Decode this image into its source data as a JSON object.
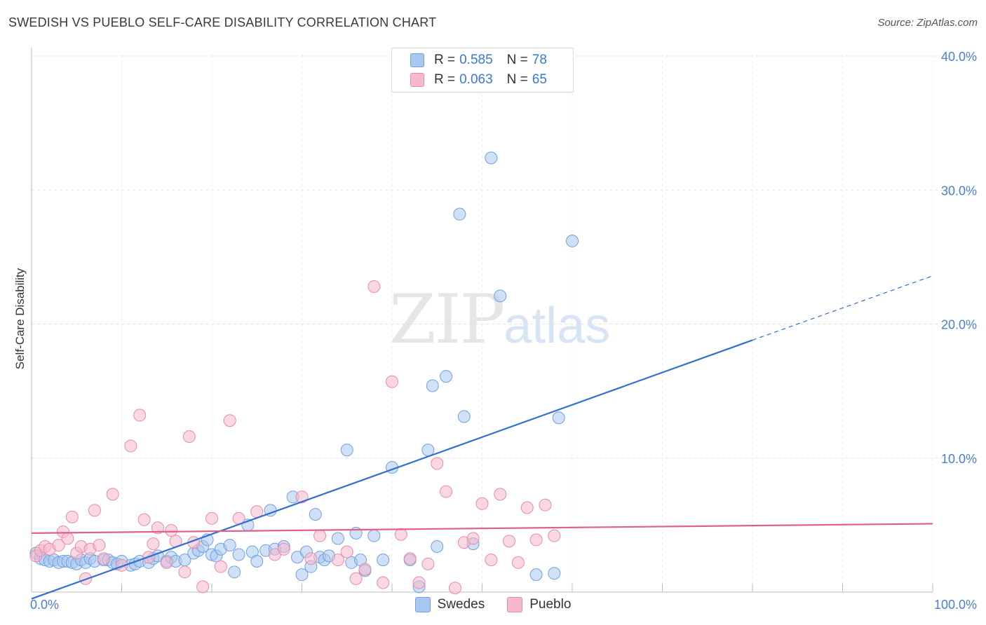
{
  "title": "SWEDISH VS PUEBLO SELF-CARE DISABILITY CORRELATION CHART",
  "source": "Source: ZipAtlas.com",
  "watermark": {
    "zip": "ZIP",
    "atlas": "atlas"
  },
  "legend": {
    "rows": [
      {
        "r_label": "R =",
        "r_value": "0.585",
        "n_label": "N =",
        "n_value": "78",
        "color": "#a9c8f0"
      },
      {
        "r_label": "R =",
        "r_value": "0.063",
        "n_label": "N =",
        "n_value": "65",
        "color": "#f6b8cc"
      }
    ]
  },
  "bottom_legend": [
    {
      "label": "Swedes",
      "color": "#a9c8f0"
    },
    {
      "label": "Pueblo",
      "color": "#f6b8cc"
    }
  ],
  "chart_data": {
    "type": "scatter",
    "title": "SWEDISH VS PUEBLO SELF-CARE DISABILITY CORRELATION CHART",
    "xlabel": "",
    "ylabel": "Self-Care Disability",
    "xlim": [
      0,
      100
    ],
    "ylim": [
      0,
      40
    ],
    "x_tick_labels": [
      "0.0%",
      "100.0%"
    ],
    "y_ticks": [
      10,
      20,
      30,
      40
    ],
    "y_tick_labels": [
      "10.0%",
      "20.0%",
      "30.0%",
      "40.0%"
    ],
    "series": [
      {
        "name": "Swedes",
        "color": "#6fa0e0",
        "fill": "#a9c8f0",
        "trend": {
          "x0": 0,
          "y0": -0.5,
          "x1": 80,
          "y1": 18.8,
          "dash_to_x": 100,
          "dash_to_y": 23.6,
          "color": "#2f6fd0"
        },
        "points": [
          [
            0.5,
            2.9
          ],
          [
            1,
            2.5
          ],
          [
            1.5,
            2.4
          ],
          [
            2,
            2.3
          ],
          [
            2.5,
            2.4
          ],
          [
            3,
            2.2
          ],
          [
            3.5,
            2.3
          ],
          [
            4,
            2.3
          ],
          [
            4.5,
            2.2
          ],
          [
            5,
            2.1
          ],
          [
            5.5,
            2.4
          ],
          [
            6,
            2.2
          ],
          [
            6.5,
            2.5
          ],
          [
            7,
            2.3
          ],
          [
            8,
            2.4
          ],
          [
            8.5,
            2.4
          ],
          [
            9,
            2.2
          ],
          [
            9.5,
            2.1
          ],
          [
            10,
            2.3
          ],
          [
            11,
            2.0
          ],
          [
            11.5,
            2.1
          ],
          [
            12,
            2.3
          ],
          [
            13,
            2.2
          ],
          [
            13.5,
            2.5
          ],
          [
            14,
            2.7
          ],
          [
            15,
            2.3
          ],
          [
            15.5,
            2.6
          ],
          [
            16,
            2.3
          ],
          [
            17,
            2.4
          ],
          [
            18,
            2.9
          ],
          [
            18.5,
            3.1
          ],
          [
            19,
            3.4
          ],
          [
            19.5,
            3.9
          ],
          [
            20,
            2.8
          ],
          [
            20.5,
            2.7
          ],
          [
            21,
            3.2
          ],
          [
            22,
            3.5
          ],
          [
            22.5,
            1.5
          ],
          [
            23,
            2.8
          ],
          [
            24,
            5.0
          ],
          [
            24.5,
            3.0
          ],
          [
            25,
            2.3
          ],
          [
            26,
            3.1
          ],
          [
            26.5,
            6.1
          ],
          [
            27,
            3.2
          ],
          [
            28,
            3.4
          ],
          [
            29,
            7.1
          ],
          [
            29.5,
            2.6
          ],
          [
            30,
            1.3
          ],
          [
            30.5,
            3.0
          ],
          [
            31,
            1.9
          ],
          [
            31.5,
            5.8
          ],
          [
            32,
            2.6
          ],
          [
            32.5,
            2.4
          ],
          [
            33,
            2.7
          ],
          [
            34,
            4.0
          ],
          [
            35,
            10.6
          ],
          [
            35.5,
            2.2
          ],
          [
            36,
            4.4
          ],
          [
            36.5,
            2.4
          ],
          [
            37,
            1.6
          ],
          [
            38,
            4.2
          ],
          [
            39,
            2.4
          ],
          [
            40,
            9.3
          ],
          [
            42,
            2.4
          ],
          [
            43,
            0.4
          ],
          [
            44,
            10.6
          ],
          [
            44.5,
            15.4
          ],
          [
            45,
            3.4
          ],
          [
            46,
            16.1
          ],
          [
            47.5,
            28.2
          ],
          [
            48,
            13.1
          ],
          [
            49,
            3.6
          ],
          [
            51,
            32.4
          ],
          [
            52,
            22.1
          ],
          [
            56,
            1.3
          ],
          [
            58,
            1.4
          ],
          [
            58.5,
            13.0
          ],
          [
            60,
            26.2
          ]
        ]
      },
      {
        "name": "Pueblo",
        "color": "#e98aa8",
        "fill": "#f6b8cc",
        "trend": {
          "x0": 0,
          "y0": 4.4,
          "x1": 100,
          "y1": 5.1,
          "color": "#e0608a"
        },
        "points": [
          [
            0.5,
            2.7
          ],
          [
            1,
            3.1
          ],
          [
            1.5,
            3.4
          ],
          [
            2,
            3.2
          ],
          [
            3,
            3.5
          ],
          [
            3.5,
            4.5
          ],
          [
            4,
            4.0
          ],
          [
            4.5,
            5.6
          ],
          [
            5,
            2.9
          ],
          [
            5.5,
            3.4
          ],
          [
            6,
            1.0
          ],
          [
            6.5,
            3.2
          ],
          [
            7,
            6.1
          ],
          [
            7.5,
            3.5
          ],
          [
            8,
            2.5
          ],
          [
            9,
            7.3
          ],
          [
            10,
            2.0
          ],
          [
            11,
            10.9
          ],
          [
            12,
            13.2
          ],
          [
            12.5,
            5.4
          ],
          [
            13,
            2.6
          ],
          [
            13.5,
            3.6
          ],
          [
            14,
            4.8
          ],
          [
            15,
            2.2
          ],
          [
            15.5,
            4.6
          ],
          [
            16,
            3.8
          ],
          [
            17,
            1.5
          ],
          [
            17.5,
            11.6
          ],
          [
            18,
            3.7
          ],
          [
            19,
            0.4
          ],
          [
            20,
            5.5
          ],
          [
            21,
            1.9
          ],
          [
            22,
            12.8
          ],
          [
            23,
            5.5
          ],
          [
            25,
            6.0
          ],
          [
            27,
            2.8
          ],
          [
            28,
            3.2
          ],
          [
            30,
            7.1
          ],
          [
            31,
            2.5
          ],
          [
            32,
            4.2
          ],
          [
            34,
            2.4
          ],
          [
            35,
            3.0
          ],
          [
            36,
            1.0
          ],
          [
            37,
            1.7
          ],
          [
            38,
            22.8
          ],
          [
            39,
            0.7
          ],
          [
            40,
            15.7
          ],
          [
            41,
            4.3
          ],
          [
            42,
            2.5
          ],
          [
            43,
            0.7
          ],
          [
            44,
            2.1
          ],
          [
            45,
            9.6
          ],
          [
            46,
            7.5
          ],
          [
            47,
            0.3
          ],
          [
            48,
            3.7
          ],
          [
            49,
            4.0
          ],
          [
            50,
            6.6
          ],
          [
            51,
            2.4
          ],
          [
            52,
            7.3
          ],
          [
            53,
            3.8
          ],
          [
            54,
            2.2
          ],
          [
            55,
            6.3
          ],
          [
            56,
            3.9
          ],
          [
            57,
            6.5
          ],
          [
            58,
            4.2
          ]
        ]
      }
    ]
  }
}
